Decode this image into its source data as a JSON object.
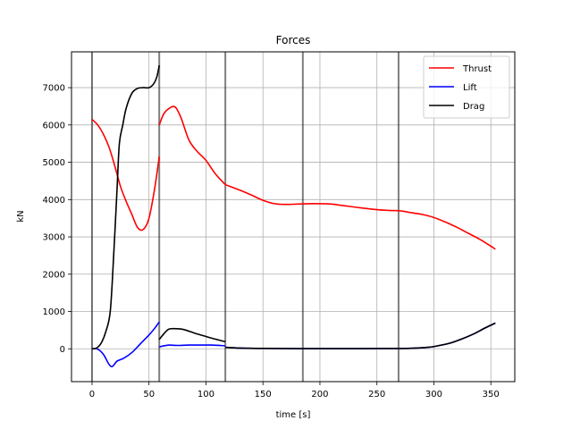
{
  "chart_data": {
    "type": "line",
    "title": "Forces",
    "xlabel": "time [s]",
    "ylabel": "kN",
    "xlim": [
      -18,
      371
    ],
    "ylim": [
      -880,
      7960
    ],
    "xticks": [
      0,
      50,
      100,
      150,
      200,
      250,
      300,
      350
    ],
    "yticks": [
      0,
      1000,
      2000,
      3000,
      4000,
      5000,
      6000,
      7000
    ],
    "grid": true,
    "legend_position": "top-right",
    "phase_boundaries": [
      0,
      59,
      117,
      185,
      269
    ],
    "series": [
      {
        "name": "Thrust",
        "color": "#ff0000",
        "segments": [
          [
            [
              0,
              6150
            ],
            [
              5,
              6000
            ],
            [
              10,
              5750
            ],
            [
              15,
              5400
            ],
            [
              20,
              4900
            ],
            [
              25,
              4350
            ],
            [
              30,
              3950
            ],
            [
              35,
              3600
            ],
            [
              40,
              3250
            ],
            [
              45,
              3200
            ],
            [
              50,
              3500
            ],
            [
              55,
              4300
            ],
            [
              59,
              5150
            ]
          ],
          [
            [
              59,
              6000
            ],
            [
              63,
              6300
            ],
            [
              68,
              6450
            ],
            [
              73,
              6480
            ],
            [
              78,
              6200
            ],
            [
              85,
              5600
            ],
            [
              92,
              5300
            ],
            [
              100,
              5050
            ],
            [
              108,
              4700
            ],
            [
              117,
              4400
            ]
          ],
          [
            [
              117,
              4400
            ],
            [
              130,
              4250
            ],
            [
              140,
              4120
            ],
            [
              150,
              3980
            ],
            [
              160,
              3890
            ],
            [
              170,
              3870
            ],
            [
              180,
              3880
            ],
            [
              190,
              3890
            ],
            [
              200,
              3890
            ],
            [
              210,
              3880
            ],
            [
              220,
              3840
            ],
            [
              235,
              3780
            ],
            [
              250,
              3730
            ],
            [
              260,
              3710
            ],
            [
              270,
              3700
            ],
            [
              280,
              3650
            ],
            [
              290,
              3600
            ],
            [
              300,
              3520
            ],
            [
              310,
              3400
            ],
            [
              320,
              3260
            ],
            [
              330,
              3100
            ],
            [
              340,
              2940
            ],
            [
              348,
              2790
            ],
            [
              354,
              2670
            ]
          ]
        ]
      },
      {
        "name": "Lift",
        "color": "#0000ff",
        "segments": [
          [
            [
              0,
              0
            ],
            [
              5,
              -10
            ],
            [
              10,
              -150
            ],
            [
              15,
              -420
            ],
            [
              18,
              -470
            ],
            [
              22,
              -330
            ],
            [
              28,
              -250
            ],
            [
              35,
              -100
            ],
            [
              42,
              120
            ],
            [
              50,
              370
            ],
            [
              55,
              550
            ],
            [
              59,
              720
            ]
          ],
          [
            [
              59,
              50
            ],
            [
              63,
              80
            ],
            [
              68,
              100
            ],
            [
              75,
              90
            ],
            [
              85,
              100
            ],
            [
              95,
              100
            ],
            [
              105,
              100
            ],
            [
              117,
              80
            ]
          ],
          [
            [
              117,
              40
            ],
            [
              130,
              20
            ],
            [
              150,
              10
            ],
            [
              180,
              5
            ],
            [
              220,
              5
            ],
            [
              260,
              8
            ],
            [
              280,
              15
            ],
            [
              295,
              40
            ],
            [
              305,
              90
            ],
            [
              315,
              160
            ],
            [
              325,
              270
            ],
            [
              335,
              400
            ],
            [
              345,
              560
            ],
            [
              354,
              690
            ]
          ]
        ]
      },
      {
        "name": "Drag",
        "color": "#000000",
        "segments": [
          [
            [
              0,
              0
            ],
            [
              4,
              20
            ],
            [
              8,
              150
            ],
            [
              12,
              450
            ],
            [
              16,
              1000
            ],
            [
              19,
              2500
            ],
            [
              22,
              4300
            ],
            [
              24,
              5500
            ],
            [
              27,
              6000
            ],
            [
              30,
              6450
            ],
            [
              35,
              6850
            ],
            [
              40,
              6980
            ],
            [
              45,
              7000
            ],
            [
              50,
              7000
            ],
            [
              54,
              7100
            ],
            [
              57,
              7300
            ],
            [
              59,
              7600
            ]
          ],
          [
            [
              59,
              250
            ],
            [
              63,
              400
            ],
            [
              67,
              520
            ],
            [
              72,
              540
            ],
            [
              80,
              520
            ],
            [
              90,
              420
            ],
            [
              100,
              330
            ],
            [
              108,
              260
            ],
            [
              117,
              190
            ]
          ],
          [
            [
              117,
              40
            ],
            [
              130,
              20
            ],
            [
              150,
              10
            ],
            [
              180,
              5
            ],
            [
              220,
              5
            ],
            [
              260,
              8
            ],
            [
              280,
              15
            ],
            [
              295,
              40
            ],
            [
              305,
              90
            ],
            [
              315,
              160
            ],
            [
              325,
              270
            ],
            [
              335,
              400
            ],
            [
              345,
              560
            ],
            [
              354,
              690
            ]
          ]
        ]
      }
    ]
  }
}
